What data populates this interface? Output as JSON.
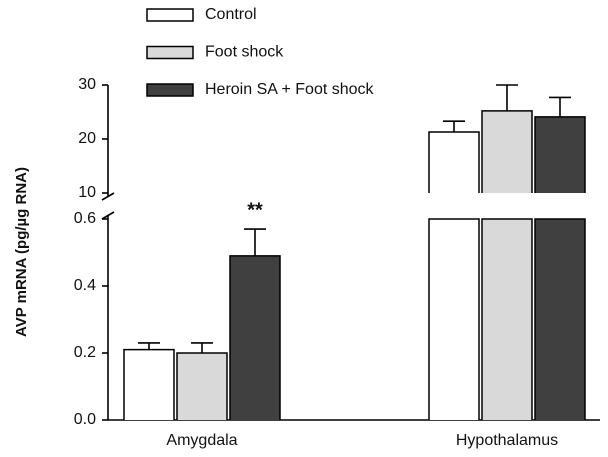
{
  "chart_data": {
    "type": "bar",
    "ylabel": "AVP mRNA (pg/µg RNA)",
    "categories": [
      "Amygdala",
      "Hypothalamus"
    ],
    "series": [
      {
        "name": "Control",
        "color": "#ffffff",
        "values": [
          0.21,
          21.3
        ],
        "errors": [
          0.02,
          2.0
        ]
      },
      {
        "name": "Foot shock",
        "color": "#d9d9d9",
        "values": [
          0.2,
          25.2
        ],
        "errors": [
          0.03,
          4.8
        ]
      },
      {
        "name": "Heroin SA + Foot shock",
        "color": "#404040",
        "values": [
          0.49,
          24.1
        ],
        "errors": [
          0.08,
          3.6
        ]
      }
    ],
    "axis_segments": [
      {
        "ylim": [
          0,
          0.6
        ],
        "yticks": [
          {
            "value": 0,
            "label": "0.0"
          },
          0.2,
          0.4,
          0.6
        ]
      },
      {
        "ylim": [
          10,
          30
        ],
        "yticks": [
          10,
          20,
          30
        ]
      }
    ],
    "annotations": [
      "**"
    ],
    "legend": "top-left"
  }
}
